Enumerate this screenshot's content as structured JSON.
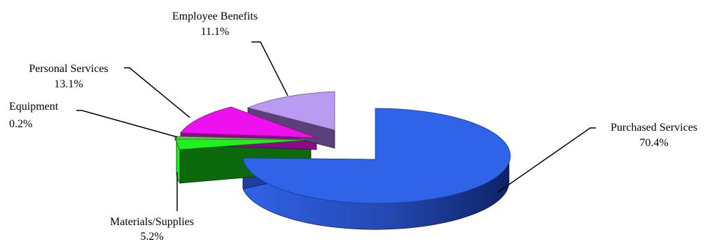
{
  "chart_data": {
    "type": "pie",
    "title": "",
    "three_d": true,
    "exploded": true,
    "slices": [
      {
        "name": "Purchased Services",
        "value": 70.4,
        "label": "70.4%",
        "color": "#2f63e8",
        "side_color": "#1c3d9a"
      },
      {
        "name": "Employee Benefits",
        "value": 11.1,
        "label": "11.1%",
        "color": "#b99bf0",
        "side_color": "#5a3f78"
      },
      {
        "name": "Personal Services",
        "value": 13.1,
        "label": "13.1%",
        "color": "#ee10ee",
        "side_color": "#8a0a8a"
      },
      {
        "name": "Equipment",
        "value": 0.2,
        "label": "0.2%",
        "color": "#55cc44",
        "side_color": "#2f7a24"
      },
      {
        "name": "Materials/Supplies",
        "value": 5.2,
        "label": "5.2%",
        "color": "#22ee22",
        "side_color": "#0c6a0c"
      }
    ]
  }
}
